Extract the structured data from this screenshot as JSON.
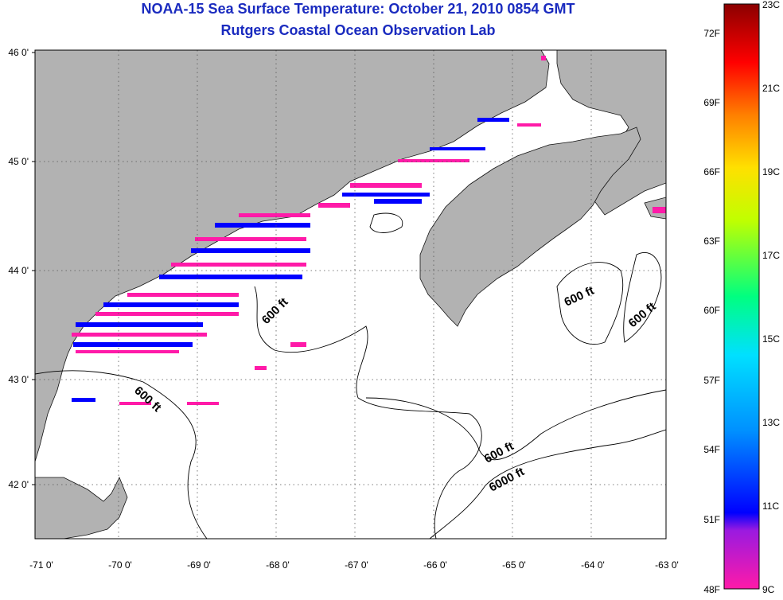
{
  "header": {
    "title": "NOAA-15 Sea Surface Temperature:  October 21, 2010 0854 GMT",
    "subtitle": "Rutgers Coastal Ocean Observation Lab"
  },
  "map": {
    "lon_range": [
      -71.0,
      -63.0
    ],
    "lat_range": [
      41.5,
      46.0
    ],
    "lon_ticks": [
      "-71 0'",
      "-70 0'",
      "-69 0'",
      "-68 0'",
      "-67 0'",
      "-66 0'",
      "-65 0'",
      "-64 0'",
      "-63 0'"
    ],
    "lat_ticks": [
      "46 0'",
      "45 0'",
      "44 0'",
      "43 0'",
      "42 0'"
    ],
    "contour_labels": [
      "600 ft",
      "600 ft",
      "600 ft",
      "600 ft",
      "600 ft",
      "6000 ft"
    ],
    "colors": {
      "land": "#b2b2b2",
      "ocean": "#ffffff",
      "grid": "#888888",
      "contour": "#000000"
    }
  },
  "colorbar": {
    "fahrenheit_labels": [
      "72F",
      "69F",
      "66F",
      "63F",
      "60F",
      "57F",
      "54F",
      "51F",
      "48F"
    ],
    "celsius_labels": [
      "23C",
      "21C",
      "19C",
      "17C",
      "15C",
      "13C",
      "11C",
      "9C"
    ],
    "range_c": [
      9,
      23
    ],
    "colors": [
      "#ff1aa8",
      "#9a1ae0",
      "#0000ff",
      "#0090ff",
      "#00e0ff",
      "#00ff80",
      "#c0ff00",
      "#ffe000",
      "#ff8000",
      "#ff0000",
      "#8b0000"
    ]
  }
}
